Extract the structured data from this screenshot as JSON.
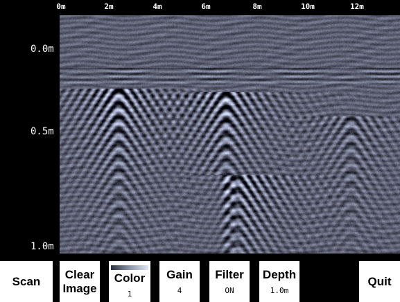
{
  "ruler": {
    "horizontal": [
      "0m",
      "2m",
      "4m",
      "6m",
      "8m",
      "10m",
      "12m"
    ],
    "vertical": [
      "0.0m",
      "0.5m",
      "1.0m"
    ]
  },
  "toolbar": {
    "scan": "Scan",
    "clear_image": "Clear\nImage",
    "color": {
      "label": "Color",
      "value": "1"
    },
    "gain": {
      "label": "Gain",
      "value": "4"
    },
    "filter": {
      "label": "Filter",
      "value": "ON"
    },
    "depth": {
      "label": "Depth",
      "value": "1.0m"
    },
    "quit": "Quit"
  },
  "colors": {
    "background": "#000000",
    "button": "#ffffff",
    "scan_mid": "#5f6878"
  }
}
